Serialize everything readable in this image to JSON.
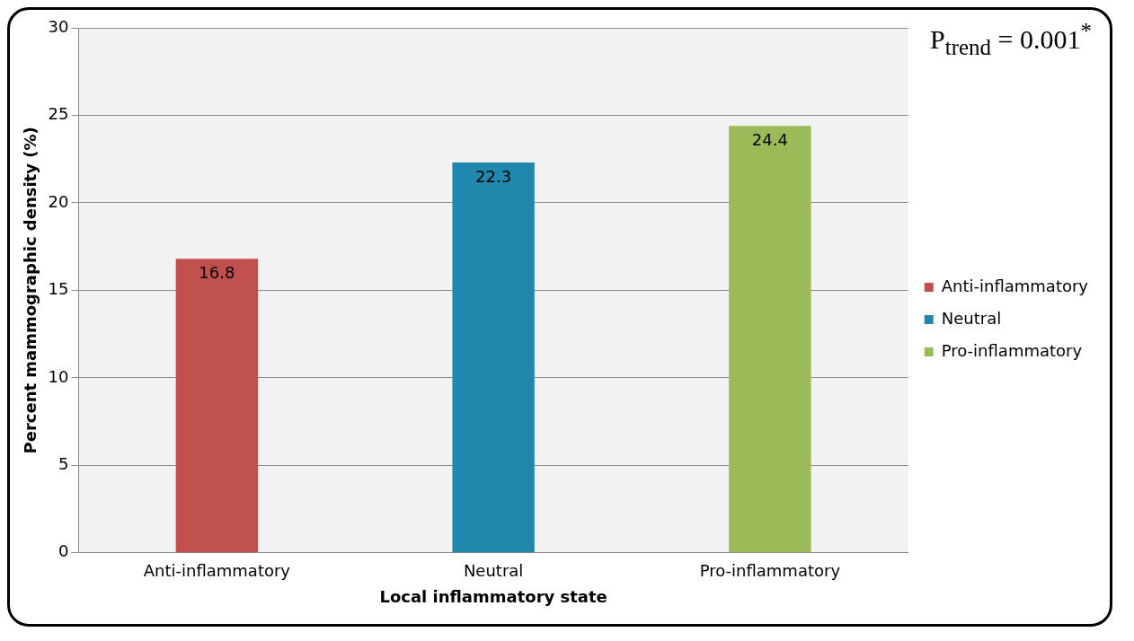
{
  "chart_data": {
    "type": "bar",
    "xlabel": "Local inflammatory state",
    "ylabel": "Percent mammographic density (%)",
    "categories": [
      "Anti-inflammatory",
      "Neutral",
      "Pro-inflammatory"
    ],
    "series": [
      {
        "name": "Anti-inflammatory",
        "color": "#c0504d",
        "values": [
          16.8,
          null,
          null
        ]
      },
      {
        "name": "Neutral",
        "color": "#2088ad",
        "values": [
          null,
          22.3,
          null
        ]
      },
      {
        "name": "Pro-inflammatory",
        "color": "#9bbb59",
        "values": [
          null,
          null,
          24.4
        ]
      }
    ],
    "ylim": [
      0,
      30
    ],
    "yticks": [
      0,
      5,
      10,
      15,
      20,
      25,
      30
    ],
    "grid": "y",
    "legend": "right",
    "data_labels": true,
    "annotations": [
      "P$_{trend}$ = 0.001$^{*}$"
    ]
  }
}
